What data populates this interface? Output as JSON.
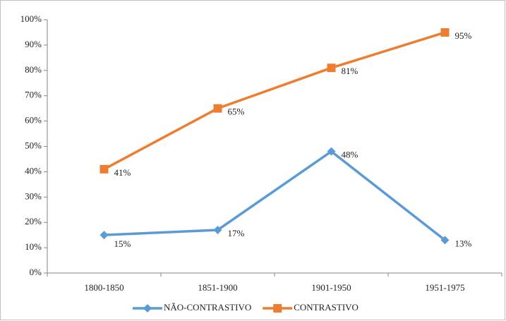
{
  "chart_data": {
    "type": "line",
    "categories": [
      "1800-1850",
      "1851-1900",
      "1901-1950",
      "1951-1975"
    ],
    "series": [
      {
        "name": "NÃO-CONTRASTIVO",
        "color": "#5b9bd5",
        "marker": "diamond",
        "values": [
          15,
          17,
          48,
          13
        ],
        "value_labels": [
          "15%",
          "17%",
          "48%",
          "13%"
        ]
      },
      {
        "name": "CONTRASTIVO",
        "color": "#ed7d31",
        "marker": "square",
        "values": [
          41,
          65,
          81,
          95
        ],
        "value_labels": [
          "41%",
          "65%",
          "81%",
          "95%"
        ]
      }
    ],
    "ylim": [
      0,
      100
    ],
    "yticks": [
      {
        "value": 0,
        "label": "0%"
      },
      {
        "value": 10,
        "label": "10%"
      },
      {
        "value": 20,
        "label": "20%"
      },
      {
        "value": 30,
        "label": "30%"
      },
      {
        "value": 40,
        "label": "40%"
      },
      {
        "value": 50,
        "label": "50%"
      },
      {
        "value": 60,
        "label": "60%"
      },
      {
        "value": 70,
        "label": "70%"
      },
      {
        "value": 80,
        "label": "80%"
      },
      {
        "value": 90,
        "label": "90%"
      },
      {
        "value": 100,
        "label": "100%"
      }
    ],
    "grid": false,
    "legend": "bottom"
  }
}
